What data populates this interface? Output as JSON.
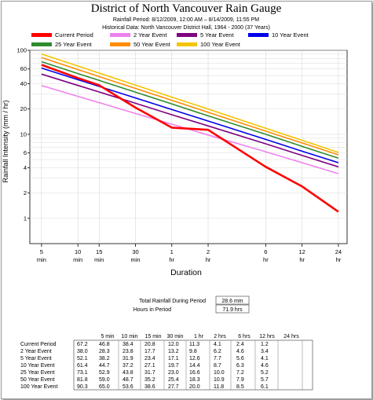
{
  "chart_data": {
    "type": "line",
    "title": "District of North Vancouver Rain Gauge",
    "subtitle_1": "Rainfall Period: 8/12/2009, 12:00 AM – 8/14/2009, 11:55 PM",
    "subtitle_2": "Historical Data: North Vancouver District Hall, 1964 - 2000 (37 Years)",
    "xlabel": "Duration",
    "ylabel": "Rainfall Intensity (mm / hr)",
    "x_scale": "log",
    "y_scale": "log",
    "ylim": [
      0.5,
      100
    ],
    "grid": true,
    "legend_position": "top",
    "x_durations_min": [
      5,
      10,
      15,
      30,
      60,
      120,
      360,
      720,
      1440
    ],
    "x_tick_labels": [
      [
        "5",
        "min"
      ],
      [
        "10",
        "min"
      ],
      [
        "15",
        "min"
      ],
      [
        "30",
        "min"
      ],
      [
        "1",
        "hr"
      ],
      [
        "2",
        "hr"
      ],
      [
        "6",
        "hr"
      ],
      [
        "12",
        "hr"
      ],
      [
        "24",
        "hr"
      ]
    ],
    "y_ticks": [
      1,
      2,
      4,
      6,
      10,
      20,
      40,
      60,
      100
    ],
    "y_tick_labels": [
      "1",
      "2",
      "4",
      "6",
      "10",
      "20",
      "40",
      "60",
      "100"
    ],
    "series": [
      {
        "name": "Current Period",
        "color": "#ff0000",
        "values": [
          67.2,
          46.8,
          38.4,
          20.8,
          12.0,
          11.3,
          4.1,
          2.4,
          1.2
        ]
      },
      {
        "name": "2 Year Event",
        "color": "#ee82ee",
        "values": [
          38.0,
          28.3,
          23.8,
          17.7,
          13.2,
          9.8,
          6.2,
          4.6,
          3.4
        ]
      },
      {
        "name": "5 Year Event",
        "color": "#800080",
        "values": [
          52.1,
          38.2,
          31.9,
          23.4,
          17.1,
          12.6,
          7.7,
          5.6,
          4.1
        ]
      },
      {
        "name": "10 Year Event",
        "color": "#0000ee",
        "values": [
          61.4,
          44.7,
          37.2,
          27.1,
          19.7,
          14.4,
          8.7,
          6.3,
          4.6
        ]
      },
      {
        "name": "25 Year Event",
        "color": "#2e8b2e",
        "values": [
          73.1,
          52.9,
          43.8,
          31.7,
          23.0,
          16.6,
          10.0,
          7.2,
          5.2
        ]
      },
      {
        "name": "50 Year Event",
        "color": "#ff8c00",
        "values": [
          81.8,
          59.0,
          48.7,
          35.2,
          25.4,
          18.3,
          10.9,
          7.9,
          5.7
        ]
      },
      {
        "name": "100 Year Event",
        "color": "#f5c400",
        "values": [
          90.3,
          65.0,
          53.6,
          38.6,
          27.7,
          20.0,
          11.8,
          8.5,
          6.1
        ]
      }
    ]
  },
  "summary": {
    "total_label": "Total Rainfall During Period",
    "total_value": "28.6 mm",
    "hours_label": "Hours in Period",
    "hours_value": "71.9 hrs"
  },
  "table": {
    "headers": [
      "5 min",
      "10 min",
      "15 min",
      "30 min",
      "1 hr",
      "2 hrs",
      "6 hrs",
      "12 hrs",
      "24 hrs"
    ],
    "rows": [
      {
        "label": "Current Period",
        "values": [
          "67.2",
          "46.8",
          "38.4",
          "20.8",
          "12.0",
          "11.3",
          "4.1",
          "2.4",
          "1.2"
        ]
      },
      {
        "label": "2 Year Event",
        "values": [
          "38.0",
          "28.3",
          "23.8",
          "17.7",
          "13.2",
          "9.8",
          "6.2",
          "4.6",
          "3.4"
        ]
      },
      {
        "label": "5 Year Event",
        "values": [
          "52.1",
          "38.2",
          "31.9",
          "23.4",
          "17.1",
          "12.6",
          "7.7",
          "5.6",
          "4.1"
        ]
      },
      {
        "label": "10 Year Event",
        "values": [
          "61.4",
          "44.7",
          "37.2",
          "27.1",
          "19.7",
          "14.4",
          "8.7",
          "6.3",
          "4.6"
        ]
      },
      {
        "label": "25 Year Event",
        "values": [
          "73.1",
          "52.9",
          "43.8",
          "31.7",
          "23.0",
          "16.6",
          "10.0",
          "7.2",
          "5.2"
        ]
      },
      {
        "label": "50 Year Event",
        "values": [
          "81.8",
          "59.0",
          "48.7",
          "35.2",
          "25.4",
          "18.3",
          "10.9",
          "7.9",
          "5.7"
        ]
      },
      {
        "label": "100 Year Event",
        "values": [
          "90.3",
          "65.0",
          "53.6",
          "38.6",
          "27.7",
          "20.0",
          "11.8",
          "8.5",
          "6.1"
        ]
      }
    ]
  }
}
